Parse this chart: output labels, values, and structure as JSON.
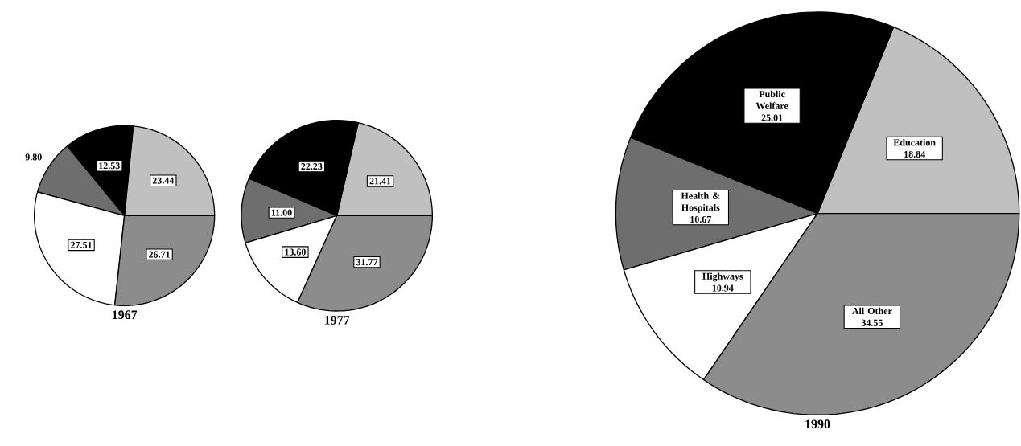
{
  "chart_data": [
    {
      "type": "pie",
      "title": "1967",
      "categories": [
        null,
        null,
        null,
        null,
        null
      ],
      "values": [
        23.44,
        12.53,
        9.8,
        27.51,
        26.71
      ],
      "value_labels": [
        "23.44",
        "12.53",
        "9.80",
        "27.51",
        "26.71"
      ],
      "colors": [
        "#c0c0c0",
        "#000000",
        "#6e6e6e",
        "#ffffff",
        "#8c8c8c"
      ]
    },
    {
      "type": "pie",
      "title": "1977",
      "categories": [
        null,
        null,
        null,
        null,
        null
      ],
      "values": [
        21.41,
        22.23,
        11.0,
        13.6,
        31.77
      ],
      "value_labels": [
        "21.41",
        "22.23",
        "11.00",
        "13.60",
        "31.77"
      ],
      "colors": [
        "#c0c0c0",
        "#000000",
        "#6e6e6e",
        "#ffffff",
        "#8c8c8c"
      ]
    },
    {
      "type": "pie",
      "title": "1990",
      "categories": [
        "Education",
        "Public Welfare",
        "Health & Hospitals",
        "Highways",
        "All Other"
      ],
      "values": [
        18.84,
        25.01,
        10.67,
        10.94,
        34.55
      ],
      "value_labels": [
        "18.84",
        "25.01",
        "10.67",
        "10.94",
        "34.55"
      ],
      "colors": [
        "#c0c0c0",
        "#000000",
        "#6e6e6e",
        "#ffffff",
        "#8c8c8c"
      ]
    }
  ]
}
